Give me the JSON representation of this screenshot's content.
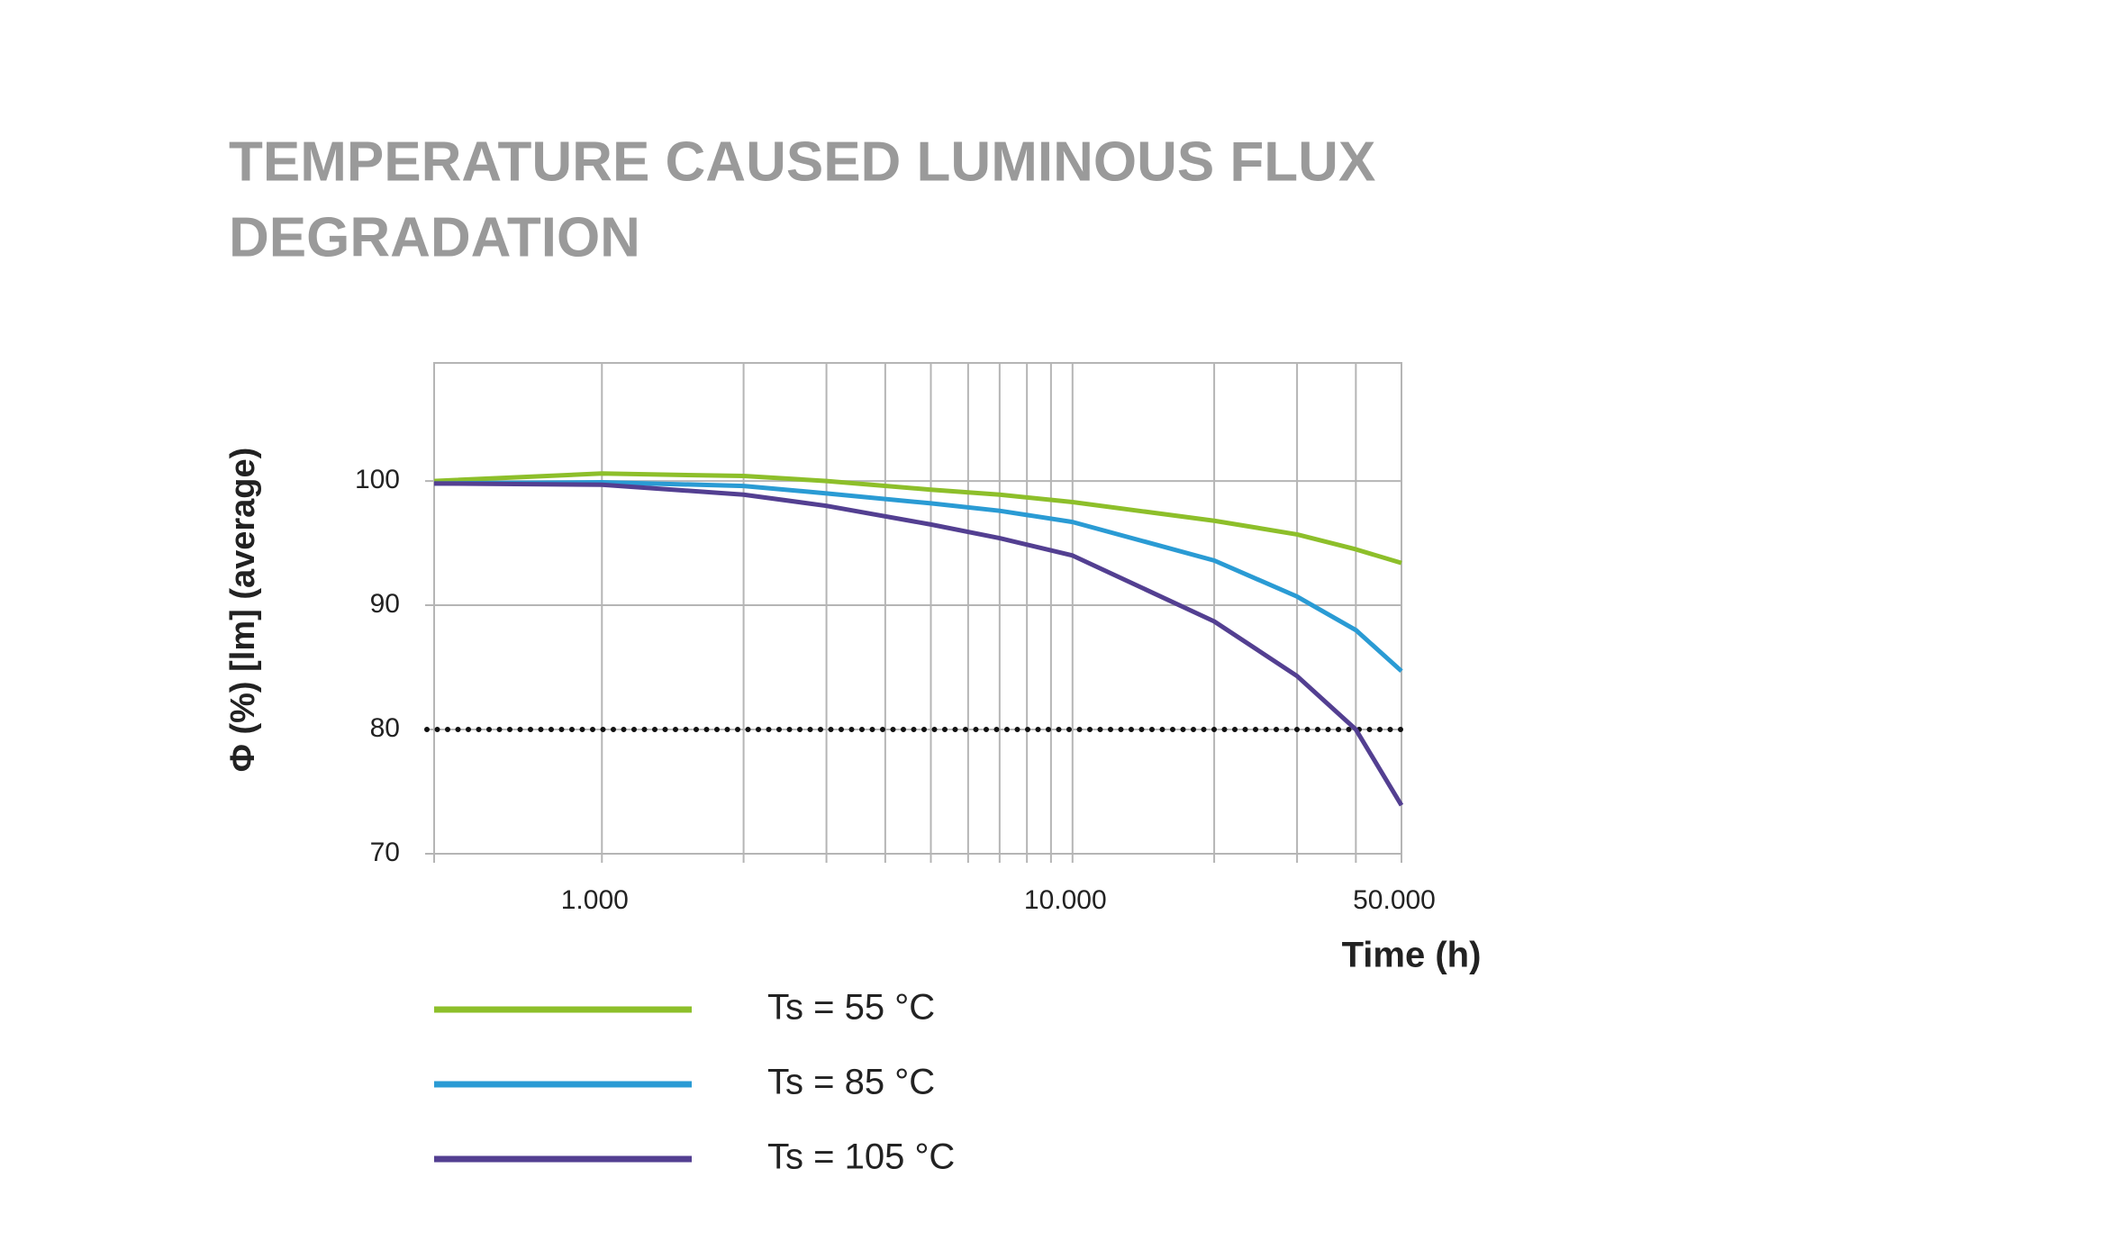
{
  "chart_data": {
    "type": "line",
    "title": "TEMPERATURE CAUSED LUMINOUS FLUX",
    "subtitle": "DEGRADATION",
    "x_label": "Time (h)",
    "y_label": "Φ (%) [lm] (average)",
    "x": [
      440,
      1000,
      2000,
      3000,
      5000,
      7000,
      10000,
      20000,
      30000,
      40000,
      50000
    ],
    "series": [
      {
        "name": "Ts = 55 °C",
        "color": "#8dbf2a",
        "values": [
          100,
          100.6,
          100.4,
          100,
          99.3,
          98.9,
          98.3,
          96.8,
          95.7,
          94.5,
          93.4
        ]
      },
      {
        "name": "Ts = 85 °C",
        "color": "#2a9bd4",
        "values": [
          99.8,
          99.9,
          99.6,
          99,
          98.2,
          97.6,
          96.7,
          93.6,
          90.7,
          88,
          84.7
        ]
      },
      {
        "name": "Ts = 105 °C",
        "color": "#533f91",
        "values": [
          99.8,
          99.7,
          98.9,
          98,
          96.5,
          95.4,
          94,
          88.7,
          84.3,
          80,
          73.9
        ]
      }
    ],
    "xscale": "log",
    "xlim": [
      440,
      50000
    ],
    "xticks": [
      {
        "value": 1000,
        "label": "1.000"
      },
      {
        "value": 10000,
        "label": "10.000"
      },
      {
        "value": 50000,
        "label": "50.000"
      }
    ],
    "xgrid": [
      2000,
      3000,
      4000,
      5000,
      6000,
      7000,
      8000,
      9000,
      20000,
      30000,
      40000
    ],
    "ylim": [
      70,
      109.5
    ],
    "yticks": [
      70,
      80,
      90,
      100
    ],
    "reference_line": 80,
    "grid": true
  }
}
